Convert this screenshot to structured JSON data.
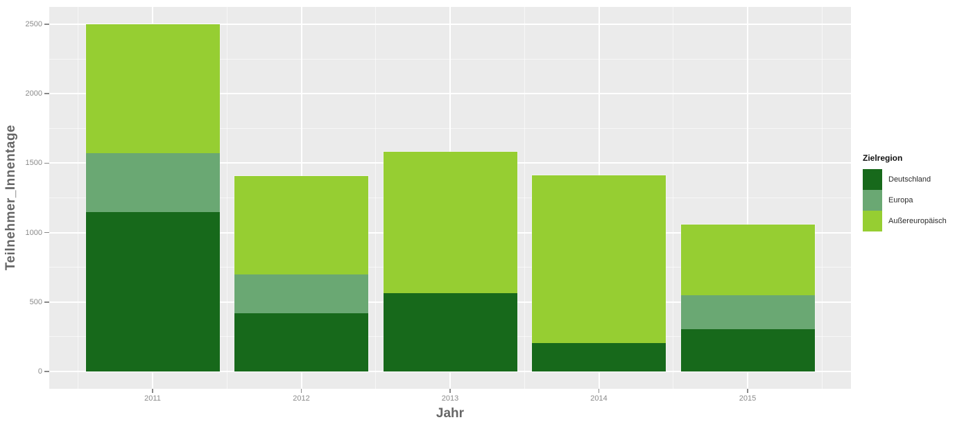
{
  "chart_data": {
    "type": "bar",
    "stacked": true,
    "title": "",
    "xlabel": "Jahr",
    "ylabel": "Teilnehmer_Innentage",
    "categories": [
      "2011",
      "2012",
      "2013",
      "2014",
      "2015"
    ],
    "series": [
      {
        "name": "Deutschland",
        "color": "#17691B",
        "values": [
          1150,
          420,
          565,
          205,
          305
        ]
      },
      {
        "name": "Europa",
        "color": "#6AA873",
        "values": [
          420,
          280,
          0,
          0,
          245
        ]
      },
      {
        "name": "Außereuropäisch",
        "color": "#96CE32",
        "values": [
          930,
          705,
          1015,
          1205,
          510
        ]
      }
    ],
    "totals": [
      2500,
      1405,
      1580,
      1410,
      1060
    ],
    "ylim": [
      0,
      2500
    ],
    "yticks": [
      0,
      500,
      1000,
      1500,
      2000,
      2500
    ],
    "legend_title": "Zielregion",
    "legend_position": "right",
    "grid": true,
    "panel_background": "#EBEBEB",
    "gridline_color": "#FFFFFF"
  }
}
